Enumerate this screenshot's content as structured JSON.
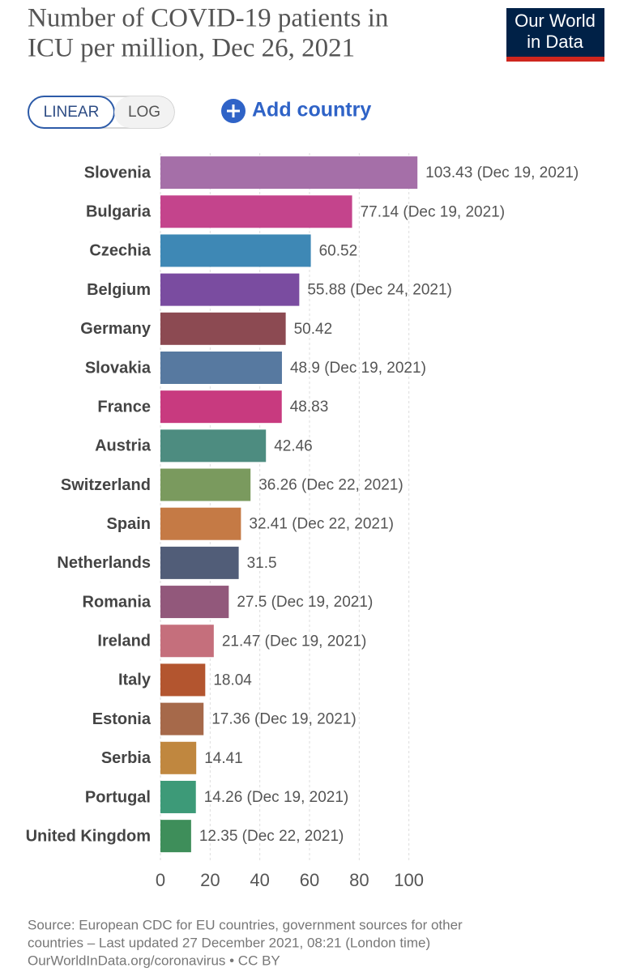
{
  "header": {
    "title_lines": [
      "Number of COVID-19 patients in",
      "ICU per million, Dec 26, 2021"
    ],
    "logo_lines": [
      "Our World",
      "in Data"
    ]
  },
  "controls": {
    "linear": "LINEAR",
    "log": "LOG",
    "add_country": "Add country"
  },
  "footer": {
    "lines": [
      "Source: European CDC for EU countries, government sources for other",
      "countries – Last updated 27 December 2021, 08:21 (London time)",
      "OurWorldInData.org/coronavirus • CC BY"
    ]
  },
  "chart_data": {
    "type": "bar",
    "orientation": "horizontal",
    "log_scale": false,
    "categories": [
      "Slovenia",
      "Bulgaria",
      "Czechia",
      "Belgium",
      "Germany",
      "Slovakia",
      "France",
      "Austria",
      "Switzerland",
      "Spain",
      "Netherlands",
      "Romania",
      "Ireland",
      "Italy",
      "Estonia",
      "Serbia",
      "Portugal",
      "United Kingdom"
    ],
    "values": [
      103.43,
      77.14,
      60.52,
      55.88,
      50.42,
      48.9,
      48.83,
      42.46,
      36.26,
      32.41,
      31.5,
      27.5,
      21.47,
      18.04,
      17.36,
      14.41,
      14.26,
      12.35
    ],
    "value_labels": [
      "103.43 (Dec 19, 2021)",
      "77.14 (Dec 19, 2021)",
      "60.52",
      "55.88 (Dec 24, 2021)",
      "50.42",
      "48.9 (Dec 19, 2021)",
      "48.83",
      "42.46",
      "36.26 (Dec 22, 2021)",
      "32.41 (Dec 22, 2021)",
      "31.5",
      "27.5 (Dec 19, 2021)",
      "21.47 (Dec 19, 2021)",
      "18.04",
      "17.36 (Dec 19, 2021)",
      "14.41",
      "14.26 (Dec 19, 2021)",
      "12.35 (Dec 22, 2021)"
    ],
    "colors": [
      "#a56fa8",
      "#c4448c",
      "#3e88b5",
      "#7a4ca0",
      "#8c4a52",
      "#5779a0",
      "#c83a7f",
      "#4d8c80",
      "#7a9a5e",
      "#c57a45",
      "#515d78",
      "#92587b",
      "#c56f7c",
      "#b3552f",
      "#a6694a",
      "#c0873f",
      "#3d9a78",
      "#3e8e5a"
    ],
    "xlim": [
      0,
      105
    ],
    "xticks": [
      0,
      20,
      40,
      60,
      80,
      100
    ],
    "grid": true
  }
}
